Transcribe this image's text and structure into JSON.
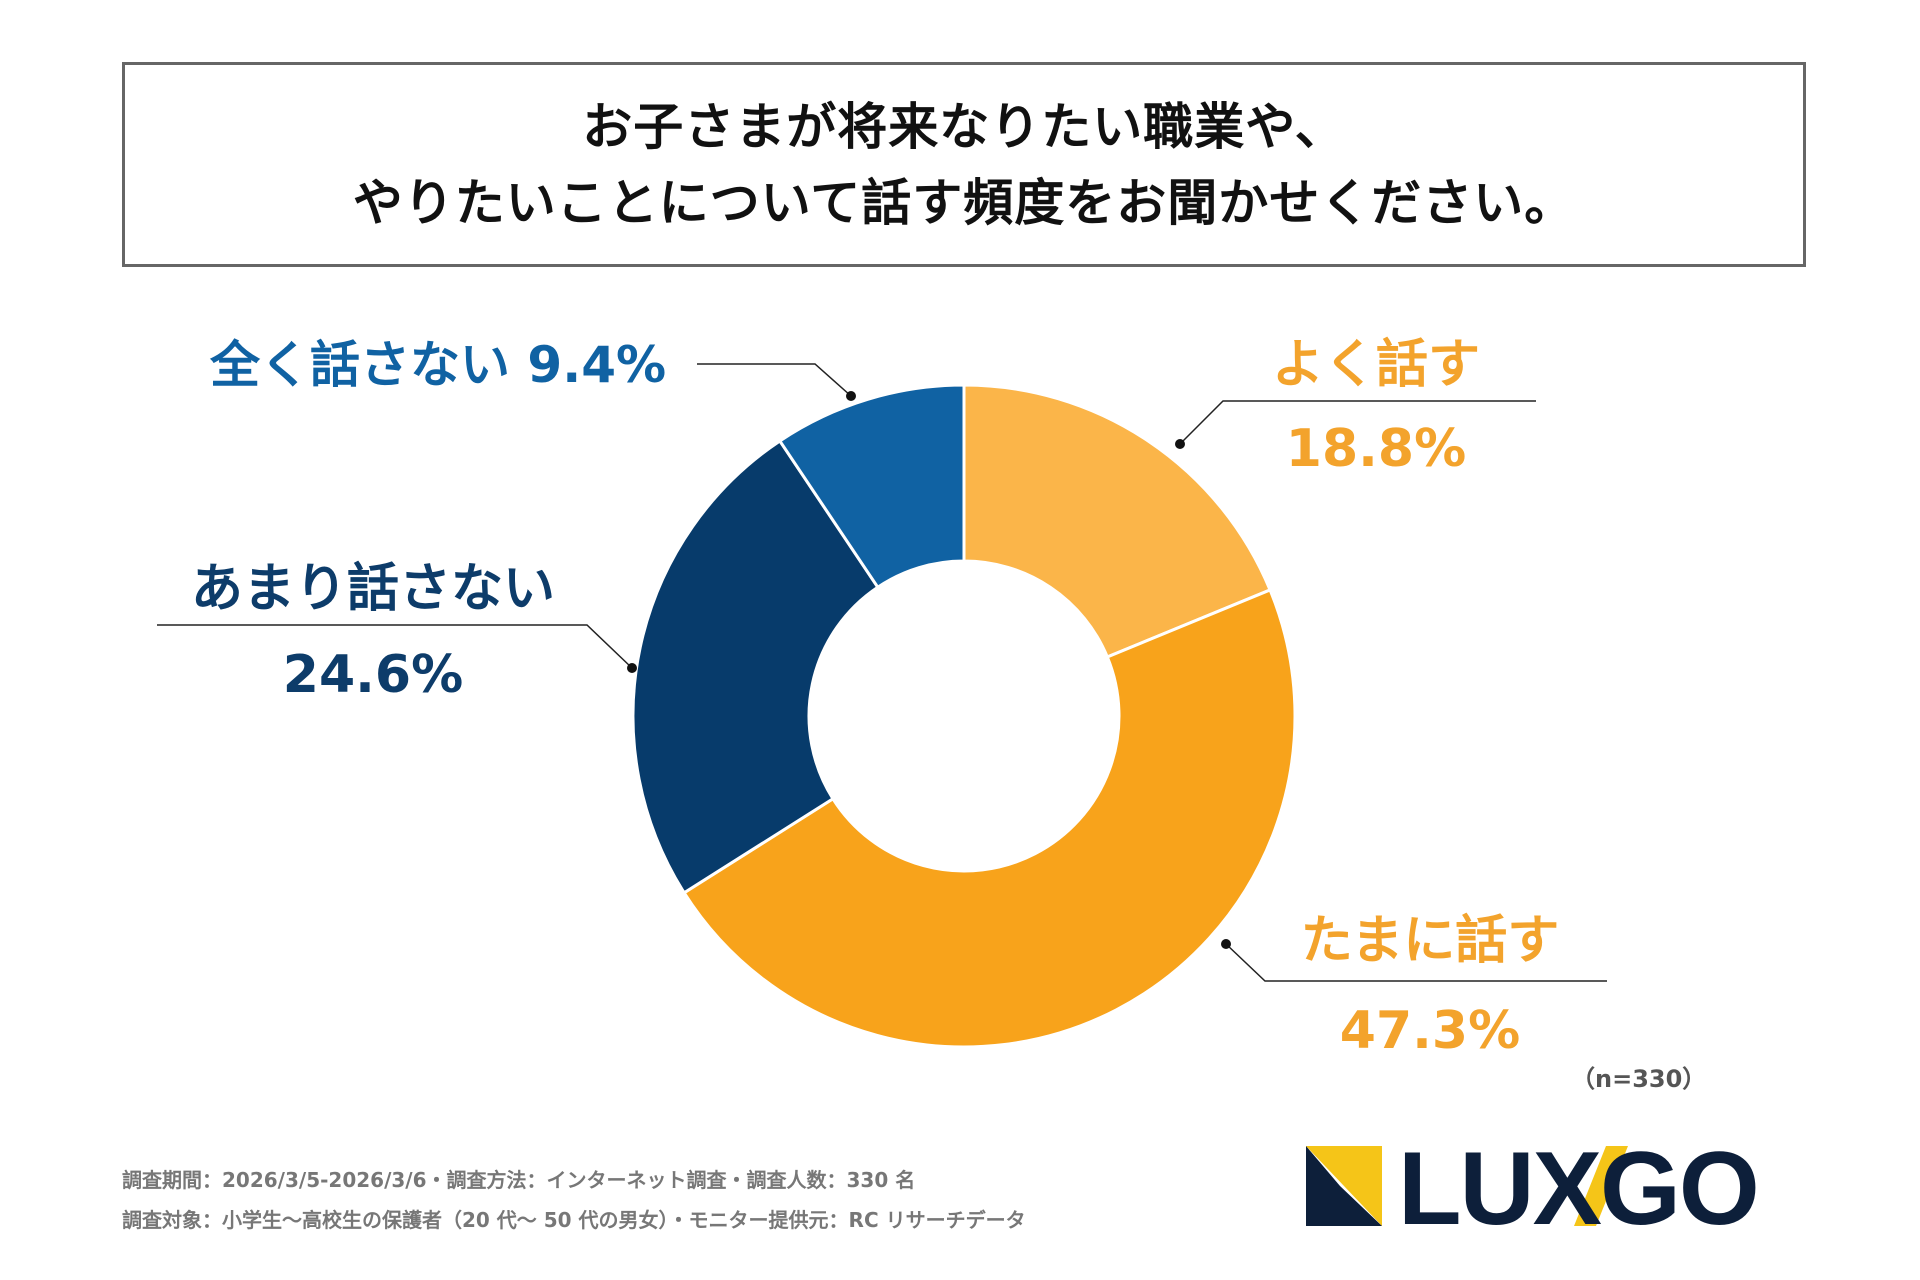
{
  "title": {
    "line1": "お子さまが将来なりたい職業や、",
    "line2": "やりたいことについて話す頻度をお聞かせください。"
  },
  "chart_data": {
    "type": "pie",
    "style": "donut",
    "categories": [
      "よく話す",
      "たまに話す",
      "あまり話さない",
      "全く話さない"
    ],
    "values": [
      18.8,
      47.3,
      24.6,
      9.4
    ],
    "value_labels": [
      "18.8%",
      "47.3%",
      "24.6%",
      "9.4%"
    ],
    "colors": [
      "#FBB549",
      "#F8A31B",
      "#073B6B",
      "#1062A3"
    ],
    "label_colors": [
      "#F3A32C",
      "#F3A32C",
      "#0D3C6A",
      "#1062A3"
    ],
    "title": "お子さまが将来なりたい職業や、やりたいことについて話す頻度をお聞かせください。",
    "legend": "none"
  },
  "sample_size": "（n=330）",
  "footer": {
    "line1": "調査期間：2026/3/5-2026/3/6・調査方法：インターネット調査・調査人数：330 名",
    "line2": "調査対象：小学生〜高校生の保護者（20 代〜 50 代の男女）・モニター提供元：RC リサーチデータ"
  },
  "logo": {
    "text": "LUXGO",
    "text_color": "#0D1F3A",
    "accent_color": "#F5C518"
  }
}
